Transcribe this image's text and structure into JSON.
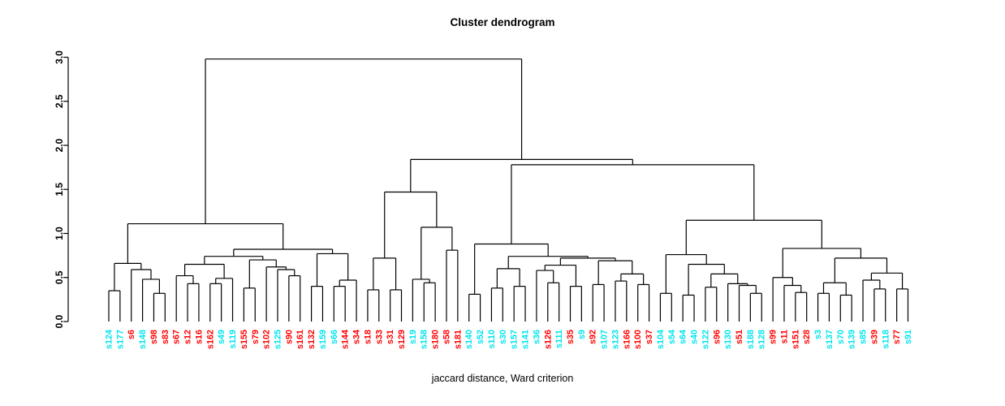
{
  "title": "Cluster dendrogram",
  "xlabel": "jaccard distance, Ward criterion",
  "colors": {
    "line": "#000000",
    "background": "#ffffff",
    "c": "#00e5ee",
    "r": "#ff0000"
  },
  "y_axis": {
    "tick_labels": [
      "0.0",
      "0.5",
      "1.0",
      "1.5",
      "2.0",
      "2.5",
      "3.0"
    ],
    "min": 0.0,
    "max": 3.0
  },
  "chart_data": {
    "type": "dendrogram",
    "ylabel_values": [
      0.0,
      0.5,
      1.0,
      1.5,
      2.0,
      2.5,
      3.0
    ],
    "leaves": [
      [
        "s124",
        "c"
      ],
      [
        "s177",
        "c"
      ],
      [
        "s6",
        "r"
      ],
      [
        "s148",
        "c"
      ],
      [
        "s98",
        "r"
      ],
      [
        "s83",
        "r"
      ],
      [
        "s67",
        "r"
      ],
      [
        "s12",
        "r"
      ],
      [
        "s16",
        "r"
      ],
      [
        "s162",
        "r"
      ],
      [
        "s49",
        "c"
      ],
      [
        "s119",
        "c"
      ],
      [
        "s155",
        "r"
      ],
      [
        "s79",
        "r"
      ],
      [
        "s102",
        "r"
      ],
      [
        "s125",
        "c"
      ],
      [
        "s90",
        "r"
      ],
      [
        "s161",
        "r"
      ],
      [
        "s132",
        "r"
      ],
      [
        "s159",
        "c"
      ],
      [
        "s66",
        "c"
      ],
      [
        "s144",
        "r"
      ],
      [
        "s34",
        "r"
      ],
      [
        "s18",
        "r"
      ],
      [
        "s33",
        "r"
      ],
      [
        "s31",
        "r"
      ],
      [
        "s129",
        "r"
      ],
      [
        "s19",
        "c"
      ],
      [
        "s158",
        "c"
      ],
      [
        "s180",
        "r"
      ],
      [
        "s58",
        "r"
      ],
      [
        "s181",
        "r"
      ],
      [
        "s140",
        "c"
      ],
      [
        "s52",
        "c"
      ],
      [
        "s110",
        "c"
      ],
      [
        "s30",
        "c"
      ],
      [
        "s157",
        "c"
      ],
      [
        "s141",
        "c"
      ],
      [
        "s36",
        "c"
      ],
      [
        "s126",
        "r"
      ],
      [
        "s111",
        "c"
      ],
      [
        "s35",
        "r"
      ],
      [
        "s9",
        "c"
      ],
      [
        "s92",
        "r"
      ],
      [
        "s107",
        "c"
      ],
      [
        "s123",
        "c"
      ],
      [
        "s166",
        "r"
      ],
      [
        "s100",
        "r"
      ],
      [
        "s37",
        "r"
      ],
      [
        "s104",
        "c"
      ],
      [
        "s54",
        "c"
      ],
      [
        "s64",
        "c"
      ],
      [
        "s40",
        "c"
      ],
      [
        "s122",
        "c"
      ],
      [
        "s96",
        "r"
      ],
      [
        "s130",
        "c"
      ],
      [
        "s51",
        "r"
      ],
      [
        "s188",
        "c"
      ],
      [
        "s128",
        "c"
      ],
      [
        "s99",
        "r"
      ],
      [
        "s11",
        "r"
      ],
      [
        "s151",
        "r"
      ],
      [
        "s28",
        "r"
      ],
      [
        "s3",
        "c"
      ],
      [
        "s137",
        "c"
      ],
      [
        "s70",
        "c"
      ],
      [
        "s139",
        "c"
      ],
      [
        "s85",
        "c"
      ],
      [
        "s39",
        "r"
      ],
      [
        "s118",
        "c"
      ],
      [
        "s77",
        "r"
      ],
      [
        "s91",
        "c"
      ]
    ],
    "tree": [
      2.98,
      [
        1.11,
        [
          0.66,
          [
            0.35,
            0,
            1
          ],
          [
            0.59,
            2,
            [
              0.48,
              3,
              [
                0.32,
                4,
                5
              ]
            ]
          ]
        ],
        [
          0.82,
          [
            0.74,
            [
              0.65,
              [
                0.52,
                6,
                [
                  0.43,
                  7,
                  8
                ]
              ],
              [
                0.49,
                [
                  0.43,
                  9,
                  10
                ],
                11
              ]
            ],
            [
              0.7,
              [
                0.38,
                12,
                13
              ],
              [
                0.62,
                14,
                [
                  0.59,
                  15,
                  [
                    0.52,
                    16,
                    17
                  ]
                ]
              ]
            ]
          ],
          [
            0.77,
            [
              0.4,
              18,
              19
            ],
            [
              0.47,
              [
                0.4,
                20,
                21
              ],
              22
            ]
          ]
        ]
      ],
      [
        1.84,
        [
          1.47,
          [
            0.72,
            [
              0.36,
              23,
              24
            ],
            [
              0.36,
              25,
              26
            ]
          ],
          [
            1.07,
            [
              0.48,
              27,
              [
                0.44,
                28,
                29
              ]
            ],
            [
              0.81,
              30,
              31
            ]
          ]
        ],
        [
          1.78,
          [
            0.88,
            [
              0.31,
              32,
              33
            ],
            [
              0.74,
              [
                0.6,
                [
                  0.38,
                  34,
                  35
                ],
                [
                  0.4,
                  36,
                  37
                ]
              ],
              [
                0.72,
                [
                  0.64,
                  [
                    0.58,
                    38,
                    [
                      0.44,
                      39,
                      40
                    ]
                  ],
                  [
                    0.4,
                    41,
                    42
                  ]
                ],
                [
                  0.69,
                  [
                    0.42,
                    43,
                    44
                  ],
                  [
                    0.54,
                    [
                      0.46,
                      45,
                      46
                    ],
                    [
                      0.42,
                      47,
                      48
                    ]
                  ]
                ]
              ]
            ]
          ],
          [
            1.15,
            [
              0.76,
              [
                0.32,
                49,
                50
              ],
              [
                0.65,
                [
                  0.3,
                  51,
                  52
                ],
                [
                  0.54,
                  [
                    0.39,
                    53,
                    54
                  ],
                  [
                    0.43,
                    55,
                    [
                      0.41,
                      56,
                      [
                        0.32,
                        57,
                        58
                      ]
                    ]
                  ]
                ]
              ]
            ],
            [
              0.83,
              [
                0.5,
                59,
                [
                  0.41,
                  60,
                  [
                    0.33,
                    61,
                    62
                  ]
                ]
              ],
              [
                0.72,
                [
                  0.44,
                  [
                    0.32,
                    63,
                    64
                  ],
                  [
                    0.3,
                    65,
                    66
                  ]
                ],
                [
                  0.55,
                  [
                    0.47,
                    67,
                    [
                      0.37,
                      68,
                      69
                    ]
                  ],
                  [
                    0.37,
                    70,
                    71
                  ]
                ]
              ]
            ]
          ]
        ]
      ]
    ]
  }
}
